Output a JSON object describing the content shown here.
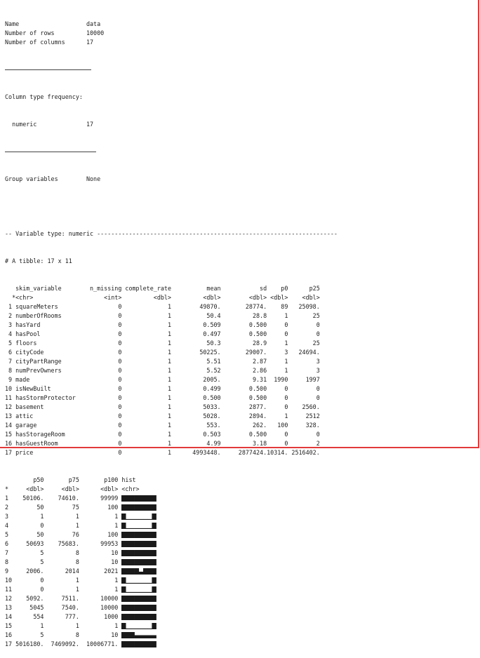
{
  "summary": {
    "rows": [
      {
        "label": "Name",
        "value": "data"
      },
      {
        "label": "Number of rows",
        "value": "10000"
      },
      {
        "label": "Number of columns",
        "value": "17"
      }
    ],
    "type_freq_header": "Column type frequency:",
    "type_freq_rows": [
      {
        "label": "  numeric",
        "value": "17"
      }
    ],
    "group_row": {
      "label": "Group variables",
      "value": "None"
    }
  },
  "variable_type_line": "-- Variable type: numeric --------------------------------------------------------------------",
  "tibble_line": "# A tibble: 17 x 11",
  "table1": {
    "headers": [
      "skim_variable",
      "n_missing",
      "complete_rate",
      "mean",
      "sd",
      "p0",
      "p25"
    ],
    "types": [
      "<chr>",
      "<int>",
      "<dbl>",
      "<dbl>",
      "<dbl>",
      "<dbl>",
      "<dbl>"
    ],
    "rows": [
      [
        "1",
        "squareMeters",
        "0",
        "1",
        "49870.",
        "28774.",
        "89",
        "25098."
      ],
      [
        "2",
        "numberOfRooms",
        "0",
        "1",
        "50.4",
        "28.8",
        "1",
        "25"
      ],
      [
        "3",
        "hasYard",
        "0",
        "1",
        "0.509",
        "0.500",
        "0",
        "0"
      ],
      [
        "4",
        "hasPool",
        "0",
        "1",
        "0.497",
        "0.500",
        "0",
        "0"
      ],
      [
        "5",
        "floors",
        "0",
        "1",
        "50.3",
        "28.9",
        "1",
        "25"
      ],
      [
        "6",
        "cityCode",
        "0",
        "1",
        "50225.",
        "29007.",
        "3",
        "24694."
      ],
      [
        "7",
        "cityPartRange",
        "0",
        "1",
        "5.51",
        "2.87",
        "1",
        "3"
      ],
      [
        "8",
        "numPrevOwners",
        "0",
        "1",
        "5.52",
        "2.86",
        "1",
        "3"
      ],
      [
        "9",
        "made",
        "0",
        "1",
        "2005.",
        "9.31",
        "1990",
        "1997"
      ],
      [
        "10",
        "isNewBuilt",
        "0",
        "1",
        "0.499",
        "0.500",
        "0",
        "0"
      ],
      [
        "11",
        "hasStormProtector",
        "0",
        "1",
        "0.500",
        "0.500",
        "0",
        "0"
      ],
      [
        "12",
        "basement",
        "0",
        "1",
        "5033.",
        "2877.",
        "0",
        "2560."
      ],
      [
        "13",
        "attic",
        "0",
        "1",
        "5028.",
        "2894.",
        "1",
        "2512"
      ],
      [
        "14",
        "garage",
        "0",
        "1",
        "553.",
        "262.",
        "100",
        "328."
      ],
      [
        "15",
        "hasStorageRoom",
        "0",
        "1",
        "0.503",
        "0.500",
        "0",
        "0"
      ],
      [
        "16",
        "hasGuestRoom",
        "0",
        "1",
        "4.99",
        "3.18",
        "0",
        "2"
      ],
      [
        "17",
        "price",
        "0",
        "1",
        "4993448.",
        "2877424.",
        "10314.",
        "2516402."
      ]
    ]
  },
  "table2": {
    "headers": [
      "p50",
      "p75",
      "p100",
      "hist"
    ],
    "types": [
      "<dbl>",
      "<dbl>",
      "<dbl>",
      "<chr>"
    ],
    "rows": [
      [
        "1",
        "50106.",
        "74610.",
        "99999",
        "uniform"
      ],
      [
        "2",
        "50",
        "75",
        "100",
        "uniform"
      ],
      [
        "3",
        "1",
        "1",
        "1",
        "binary"
      ],
      [
        "4",
        "0",
        "1",
        "1",
        "binary"
      ],
      [
        "5",
        "50",
        "76",
        "100",
        "uniform"
      ],
      [
        "6",
        "50693",
        "75683.",
        "99953",
        "uniform"
      ],
      [
        "7",
        "5",
        "8",
        "10",
        "uniform"
      ],
      [
        "8",
        "5",
        "8",
        "10",
        "uniform"
      ],
      [
        "9",
        "2006.",
        "2014",
        "2021",
        "dip"
      ],
      [
        "10",
        "0",
        "1",
        "1",
        "binary"
      ],
      [
        "11",
        "0",
        "1",
        "1",
        "binary"
      ],
      [
        "12",
        "5092.",
        "7511.",
        "10000",
        "uniform"
      ],
      [
        "13",
        "5045",
        "7540.",
        "10000",
        "uniform"
      ],
      [
        "14",
        "554",
        "777.",
        "1000",
        "uniform"
      ],
      [
        "15",
        "1",
        "1",
        "1",
        "binary"
      ],
      [
        "16",
        "5",
        "8",
        "10",
        "right-step"
      ],
      [
        "17",
        "5016180.",
        "7469092.",
        "10006771.",
        "uniform"
      ]
    ]
  }
}
